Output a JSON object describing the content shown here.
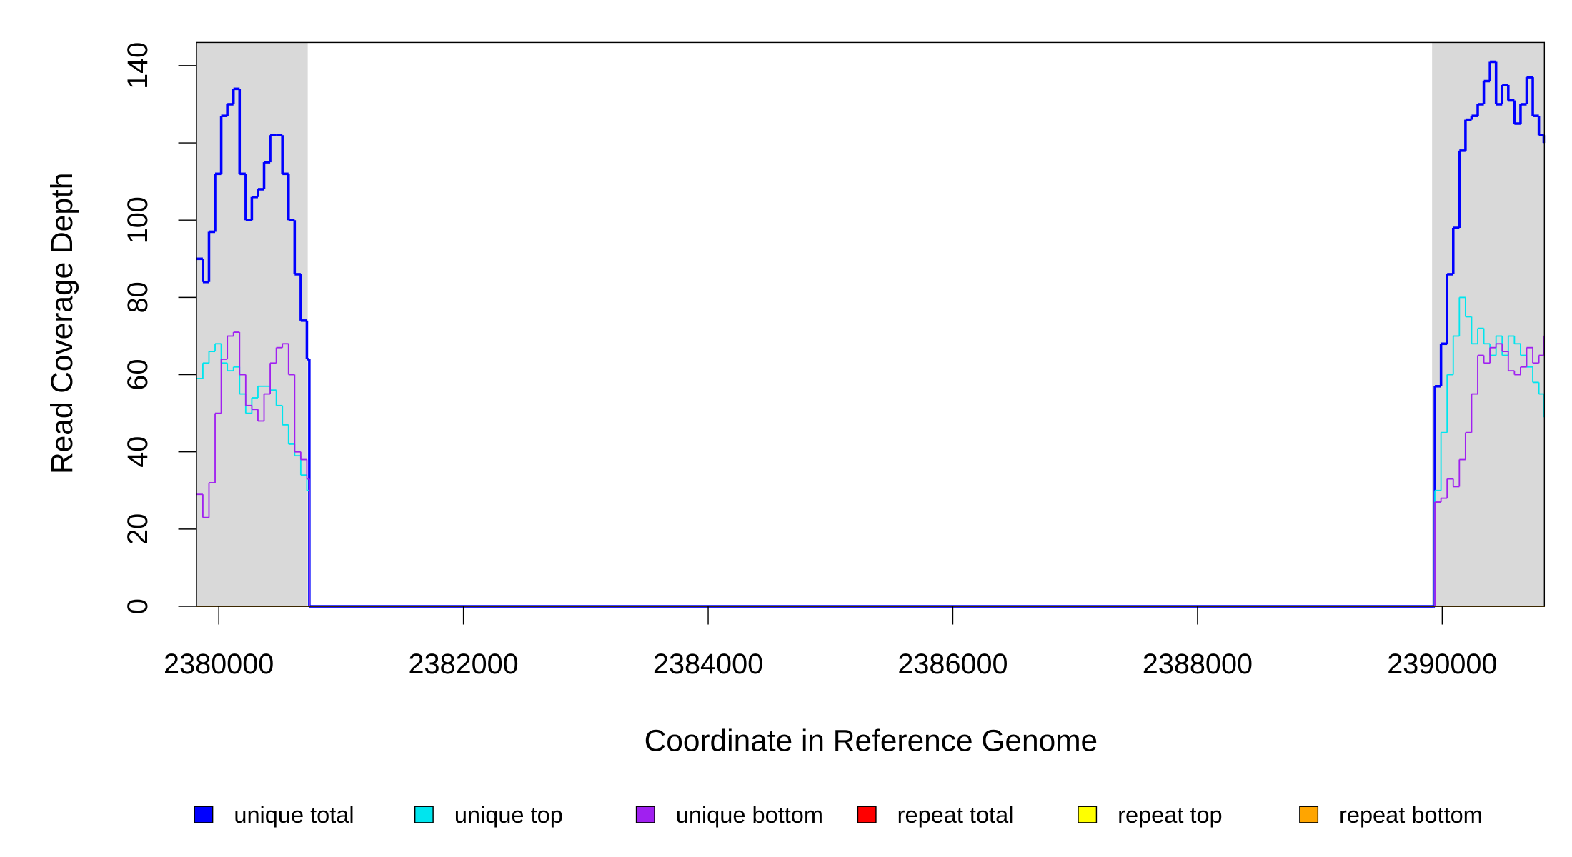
{
  "chart_data": {
    "type": "step",
    "xlabel": "Coordinate in Reference Genome",
    "ylabel": "Read Coverage Depth",
    "x": [
      2379820,
      2379870,
      2379920,
      2379970,
      2380020,
      2380070,
      2380120,
      2380170,
      2380220,
      2380270,
      2380320,
      2380370,
      2380420,
      2380470,
      2380520,
      2380570,
      2380620,
      2380670,
      2380720,
      2380740,
      2389930,
      2389940,
      2389990,
      2390040,
      2390090,
      2390140,
      2390190,
      2390240,
      2390290,
      2390340,
      2390390,
      2390440,
      2390490,
      2390540,
      2390590,
      2390640,
      2390690,
      2390740,
      2390790,
      2390830
    ],
    "series": [
      {
        "name": "unique total",
        "color": "#0000ff",
        "values": [
          90,
          84,
          97,
          112,
          127,
          130,
          134,
          112,
          100,
          106,
          108,
          115,
          122,
          122,
          112,
          100,
          86,
          74,
          64,
          0,
          0,
          57,
          68,
          86,
          98,
          118,
          126,
          127,
          130,
          136,
          141,
          130,
          135,
          131,
          125,
          130,
          137,
          127,
          122,
          120
        ]
      },
      {
        "name": "unique top",
        "color": "#00e5ee",
        "values": [
          59,
          63,
          66,
          68,
          63,
          61,
          62,
          55,
          50,
          54,
          57,
          57,
          56,
          52,
          47,
          42,
          39,
          34,
          30,
          0,
          0,
          30,
          45,
          60,
          70,
          80,
          75,
          68,
          72,
          68,
          65,
          70,
          65,
          70,
          68,
          65,
          62,
          58,
          55,
          49
        ]
      },
      {
        "name": "unique bottom",
        "color": "#a020f0",
        "values": [
          29,
          23,
          32,
          50,
          64,
          70,
          71,
          60,
          52,
          51,
          48,
          55,
          63,
          67,
          68,
          60,
          40,
          38,
          33,
          0,
          0,
          27,
          28,
          33,
          31,
          38,
          45,
          55,
          65,
          63,
          67,
          68,
          66,
          61,
          60,
          62,
          67,
          63,
          65,
          70
        ]
      },
      {
        "name": "repeat total",
        "color": "#ff0000",
        "values": [
          0,
          0,
          0,
          0,
          0,
          0,
          0,
          0,
          0,
          0,
          0,
          0,
          0,
          0,
          0,
          0,
          0,
          0,
          0,
          0,
          0,
          0,
          0,
          0,
          0,
          0,
          0,
          0,
          0,
          0,
          0,
          0,
          0,
          0,
          0,
          0,
          0,
          0,
          0,
          0
        ]
      },
      {
        "name": "repeat top",
        "color": "#ffff00",
        "values": [
          0,
          0,
          0,
          0,
          0,
          0,
          0,
          0,
          0,
          0,
          0,
          0,
          0,
          0,
          0,
          0,
          0,
          0,
          0,
          0,
          0,
          0,
          0,
          0,
          0,
          0,
          0,
          0,
          0,
          0,
          0,
          0,
          0,
          0,
          0,
          0,
          0,
          0,
          0,
          0
        ]
      },
      {
        "name": "repeat bottom",
        "color": "#ffa500",
        "values": [
          0,
          0,
          0,
          0,
          0,
          0,
          0,
          0,
          0,
          0,
          0,
          0,
          0,
          0,
          0,
          0,
          0,
          0,
          0,
          0,
          0,
          0,
          0,
          0,
          0,
          0,
          0,
          0,
          0,
          0,
          0,
          0,
          0,
          0,
          0,
          0,
          0,
          0,
          0,
          0
        ]
      }
    ],
    "shaded": [
      [
        2379818,
        2380727
      ],
      [
        2389917,
        2390835
      ]
    ],
    "shade_color": "#d9d9d9",
    "xlim": [
      2379818,
      2390835
    ],
    "xticks": [
      2380000,
      2382000,
      2384000,
      2386000,
      2388000,
      2390000
    ],
    "ylim": [
      0,
      146
    ],
    "yticks": [
      0,
      20,
      40,
      60,
      80,
      100,
      140
    ],
    "ytick_marks_unlabeled": [
      120
    ],
    "legend": "bottom"
  }
}
